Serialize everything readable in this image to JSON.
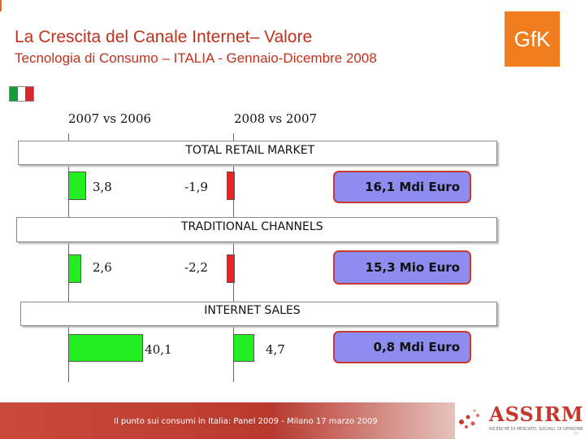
{
  "slide": {
    "title": "La Crescita del Canale Internet– Valore",
    "subtitle": "Tecnologia di Consumo – ITALIA - Gennaio-Dicembre 2008",
    "logo_text": "GfK",
    "flag": "Italy",
    "footer_text": "Il punto sui consumi in Italia: Panel 2009 - Milano 17 marzo 2009",
    "assirm_text": "ASSIRM",
    "assirm_subtext": "RICERCHE DI MERCATO, SOCIALI, DI OPINIONE",
    "slide_number": "33"
  },
  "colors": {
    "title": "#c0311b",
    "positive_bar": "#22ee22",
    "negative_bar": "#ee2222",
    "value_box": "#8d8cf0",
    "logo": "#f07d1e"
  },
  "chart_data": {
    "type": "bar",
    "orientation": "horizontal",
    "columns": [
      "2007 vs 2006",
      "2008 vs 2007"
    ],
    "sections": [
      {
        "label": "TOTAL RETAIL MARKET",
        "values": [
          3.8,
          -1.9
        ],
        "value_labels": [
          "3,8",
          "-1,9"
        ],
        "total": "16,1 Mdi Euro"
      },
      {
        "label": "TRADITIONAL CHANNELS",
        "values": [
          2.6,
          -2.2
        ],
        "value_labels": [
          "2,6",
          "-2,2"
        ],
        "total": "15,3 Mio Euro"
      },
      {
        "label": "INTERNET SALES",
        "values": [
          40.1,
          4.7
        ],
        "value_labels": [
          "40,1",
          "4,7"
        ],
        "total": "0,8 Mdi Euro"
      }
    ]
  }
}
